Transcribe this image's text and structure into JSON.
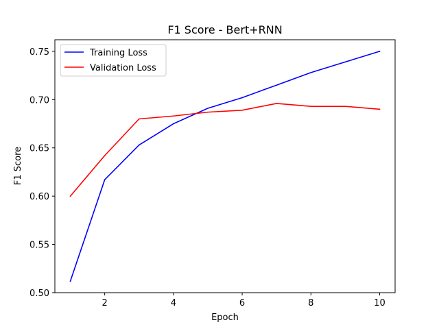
{
  "chart_data": {
    "type": "line",
    "title": "F1 Score - Bert+RNN",
    "xlabel": "Epoch",
    "ylabel": "F1 Score",
    "x": [
      1,
      2,
      3,
      4,
      5,
      6,
      7,
      8,
      9,
      10
    ],
    "xlim": [
      0.55,
      10.45
    ],
    "ylim": [
      0.5,
      0.762
    ],
    "xticks": [
      2,
      4,
      6,
      8,
      10
    ],
    "xtick_labels": [
      "2",
      "4",
      "6",
      "8",
      "10"
    ],
    "yticks": [
      0.5,
      0.55,
      0.6,
      0.65,
      0.7,
      0.75
    ],
    "ytick_labels": [
      "0.50",
      "0.55",
      "0.60",
      "0.65",
      "0.70",
      "0.75"
    ],
    "grid": false,
    "legend_position": "top-left",
    "series": [
      {
        "name": "Training Loss",
        "color": "#0000ff",
        "values": [
          0.512,
          0.617,
          0.653,
          0.675,
          0.691,
          0.702,
          0.715,
          0.728,
          0.739,
          0.75
        ]
      },
      {
        "name": "Validation Loss",
        "color": "#ff0000",
        "values": [
          0.6,
          0.642,
          0.68,
          0.683,
          0.687,
          0.689,
          0.696,
          0.693,
          0.693,
          0.69
        ]
      }
    ]
  }
}
